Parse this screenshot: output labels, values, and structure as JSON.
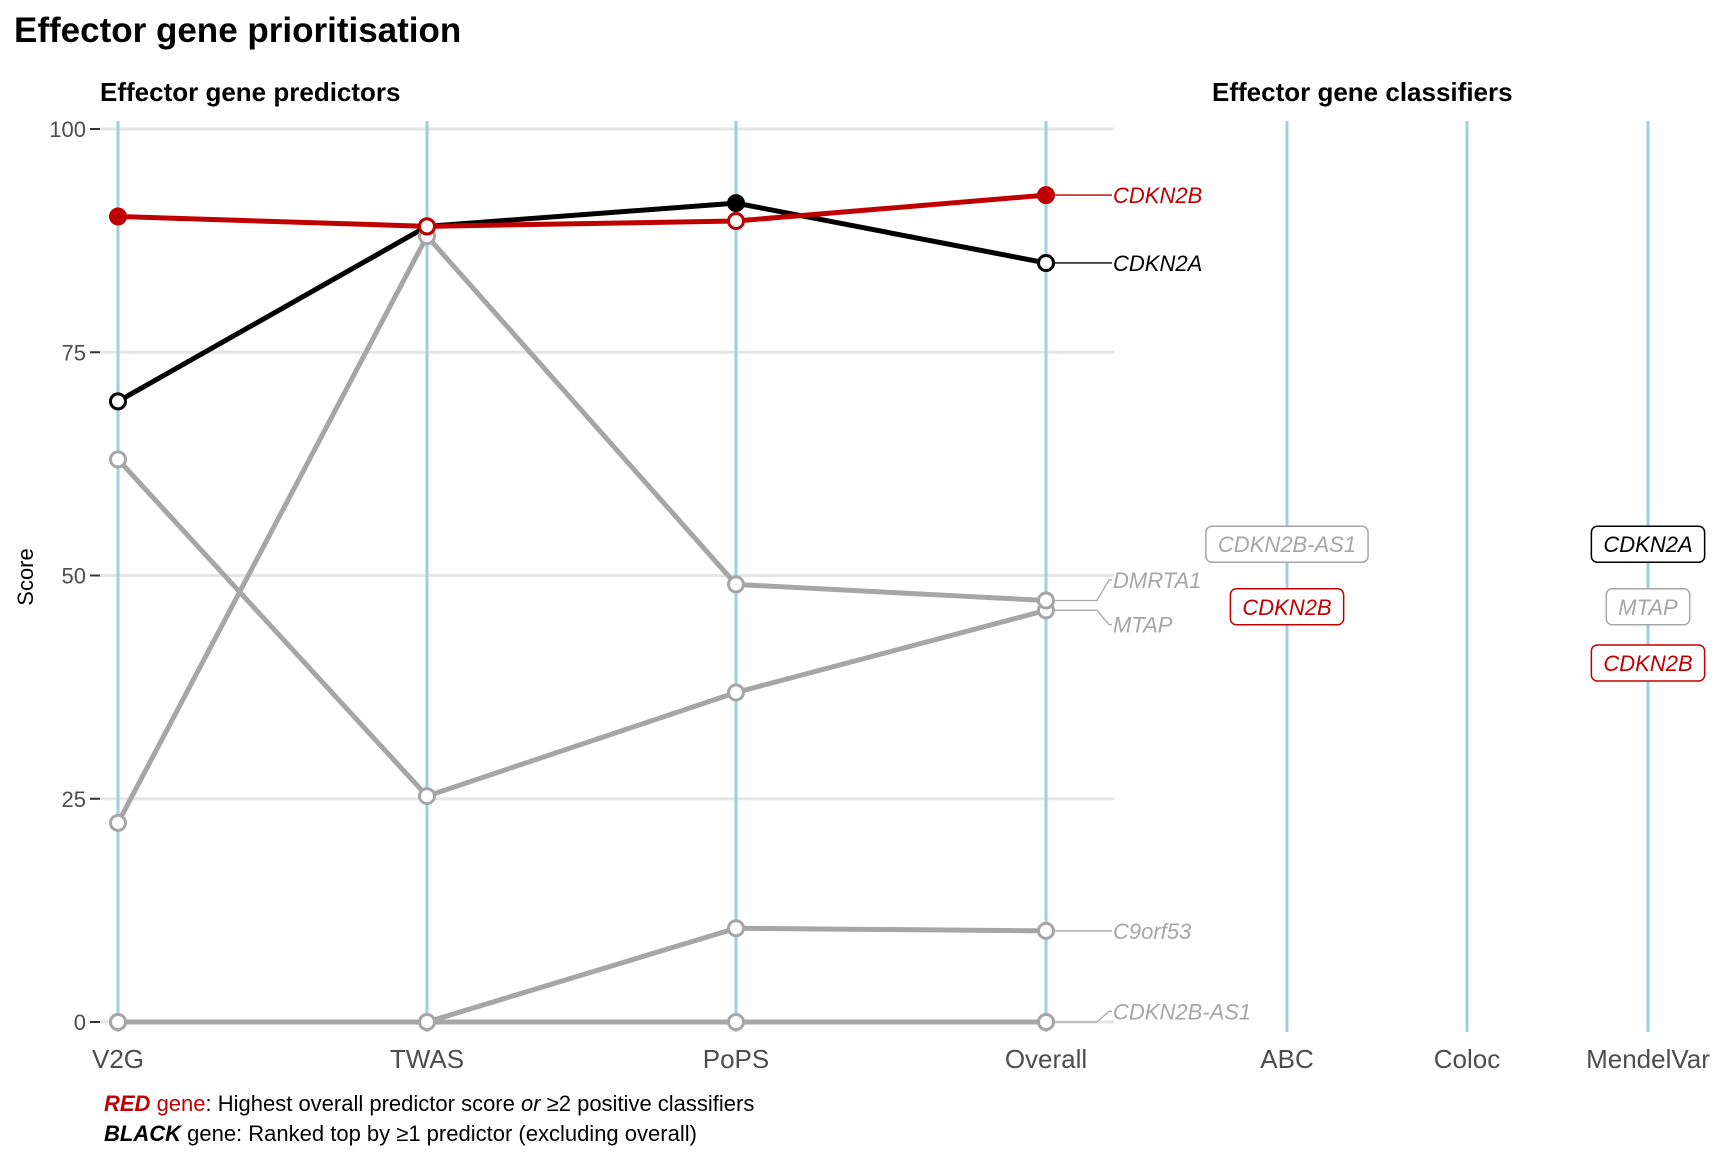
{
  "title": "Effector gene prioritisation",
  "predictors_title": "Effector gene predictors",
  "classifiers_title": "Effector gene classifiers",
  "colors": {
    "red": "#c00000",
    "black": "#000000",
    "grey": "#a6a6a6",
    "axis_line": "#9ecfdc",
    "grid": "#e5e5e5"
  },
  "chart_data": {
    "type": "line",
    "ylabel": "Score",
    "ylim": [
      0,
      100
    ],
    "yticks": [
      0,
      25,
      50,
      75,
      100
    ],
    "categories": [
      "V2G",
      "TWAS",
      "PoPS",
      "Overall"
    ],
    "classifier_categories": [
      "ABC",
      "Coloc",
      "MendelVar"
    ],
    "series": [
      {
        "name": "C9orf53",
        "color": "grey",
        "values": [
          0,
          0,
          10.5,
          10.2
        ],
        "filled": [
          false,
          false,
          false,
          false
        ]
      },
      {
        "name": "CDKN2B-AS1",
        "color": "grey",
        "values": [
          0,
          0,
          0,
          0
        ],
        "filled": [
          false,
          false,
          false,
          false
        ]
      },
      {
        "name": "MTAP",
        "color": "grey",
        "values": [
          63,
          25.3,
          36.9,
          46.1
        ],
        "filled": [
          false,
          false,
          false,
          false
        ]
      },
      {
        "name": "DMRTA1",
        "color": "grey",
        "values": [
          22.3,
          88,
          49,
          47.2
        ],
        "filled": [
          false,
          false,
          false,
          false
        ]
      },
      {
        "name": "CDKN2A",
        "color": "black",
        "values": [
          69.5,
          89.1,
          91.7,
          85
        ],
        "filled": [
          false,
          true,
          true,
          false
        ]
      },
      {
        "name": "CDKN2B",
        "color": "red",
        "values": [
          90.2,
          89.1,
          89.7,
          92.6
        ],
        "filled": [
          true,
          false,
          false,
          true
        ]
      }
    ],
    "end_labels": [
      {
        "text": "CDKN2B",
        "color": "red",
        "value": 92.6,
        "label_value": 92.6
      },
      {
        "text": "CDKN2A",
        "color": "black",
        "value": 85,
        "label_value": 85
      },
      {
        "text": "DMRTA1",
        "color": "grey",
        "value": 47.2,
        "label_value": 49.5
      },
      {
        "text": "MTAP",
        "color": "grey",
        "value": 46.1,
        "label_value": 44.5
      },
      {
        "text": "C9orf53",
        "color": "grey",
        "value": 10.2,
        "label_value": 10.2
      },
      {
        "text": "CDKN2B-AS1",
        "color": "grey",
        "value": 0,
        "label_value": 1.2
      }
    ],
    "classifier_labels": [
      {
        "category": "ABC",
        "text": "CDKN2B-AS1",
        "color": "grey",
        "value": 53.5
      },
      {
        "category": "ABC",
        "text": "CDKN2B",
        "color": "red",
        "value": 46.5
      },
      {
        "category": "MendelVar",
        "text": "CDKN2A",
        "color": "black",
        "value": 53.5
      },
      {
        "category": "MendelVar",
        "text": "MTAP",
        "color": "grey",
        "value": 46.5
      },
      {
        "category": "MendelVar",
        "text": "CDKN2B",
        "color": "red",
        "value": 40.2
      }
    ]
  },
  "footnotes": {
    "red_key": "RED",
    "red_gene": " gene",
    "red_text": ": Highest overall predictor score ",
    "red_or": "or",
    "red_text2": " ≥2 positive classifiers",
    "black_key": "BLACK",
    "black_text": " gene: Ranked top by ≥1 predictor (excluding overall)"
  }
}
